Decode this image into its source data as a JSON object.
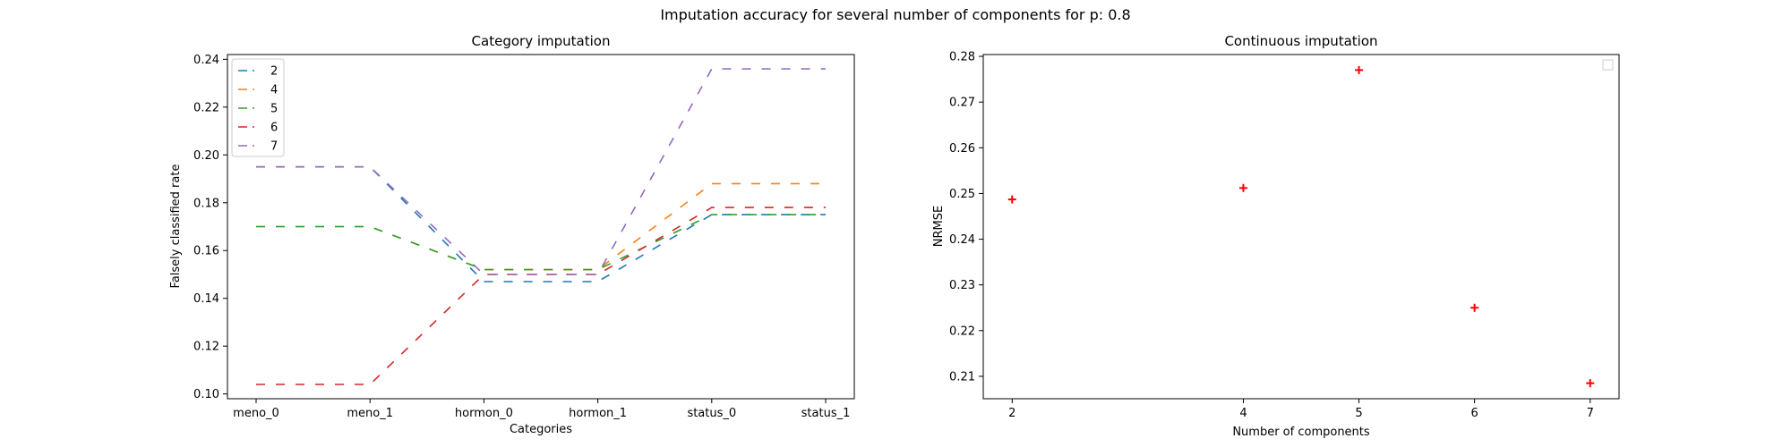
{
  "figure": {
    "suptitle": "Imputation accuracy for several number of components for p: 0.8"
  },
  "chart_data": [
    {
      "type": "line",
      "title": "Category imputation",
      "xlabel": "Categories",
      "ylabel": "Falsely classified rate",
      "categories": [
        "meno_0",
        "meno_1",
        "hormon_0",
        "hormon_1",
        "status_0",
        "status_1"
      ],
      "ylim": [
        0.098,
        0.242
      ],
      "yticks": [
        0.1,
        0.12,
        0.14,
        0.16,
        0.18,
        0.2,
        0.22,
        0.24
      ],
      "legend_position": "upper-left",
      "line_style": "dashed",
      "series": [
        {
          "name": "2",
          "color": "#1f77b4",
          "values": [
            0.195,
            0.195,
            0.147,
            0.147,
            0.175,
            0.175
          ]
        },
        {
          "name": "4",
          "color": "#ff7f0e",
          "values": [
            0.17,
            0.17,
            0.152,
            0.152,
            0.188,
            0.188
          ]
        },
        {
          "name": "5",
          "color": "#2ca02c",
          "values": [
            0.17,
            0.17,
            0.152,
            0.152,
            0.175,
            0.175
          ]
        },
        {
          "name": "6",
          "color": "#d62728",
          "values": [
            0.104,
            0.104,
            0.15,
            0.15,
            0.178,
            0.178
          ]
        },
        {
          "name": "7",
          "color": "#9467bd",
          "values": [
            0.195,
            0.195,
            0.15,
            0.15,
            0.236,
            0.236
          ]
        }
      ]
    },
    {
      "type": "scatter",
      "title": "Continuous imputation",
      "xlabel": "Number of components",
      "ylabel": "NRMSE",
      "x": [
        2,
        4,
        5,
        6,
        7
      ],
      "y": [
        0.2487,
        0.2512,
        0.277,
        0.225,
        0.2085
      ],
      "xticks": [
        2,
        4,
        5,
        6,
        7
      ],
      "xlim": [
        1.75,
        7.25
      ],
      "ylim": [
        0.2051,
        0.2804
      ],
      "yticks": [
        0.21,
        0.22,
        0.23,
        0.24,
        0.25,
        0.26,
        0.27,
        0.28
      ],
      "marker": "+",
      "marker_color": "#ff0000",
      "legend_position": "upper-right",
      "legend_entries": []
    }
  ]
}
